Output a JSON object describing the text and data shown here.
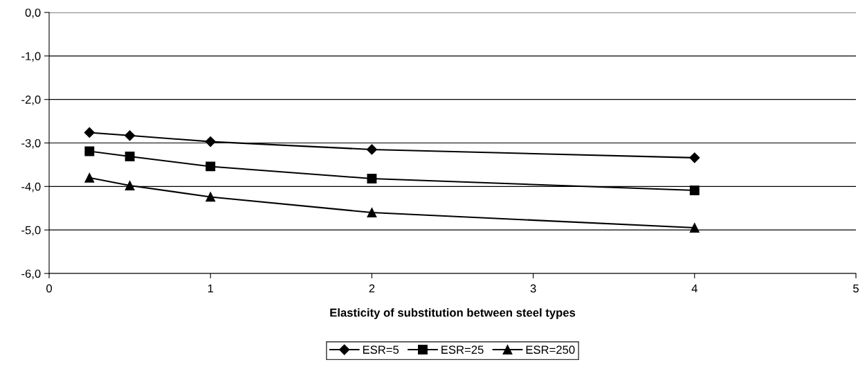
{
  "chart_data": {
    "type": "line",
    "xlabel": "Elasticity of substitution between steel types",
    "xlim": [
      0,
      5
    ],
    "xticks": [
      0,
      1,
      2,
      3,
      4,
      5
    ],
    "ylim": [
      -6,
      0
    ],
    "yticks": [
      {
        "value": -6,
        "label": "-6,0"
      },
      {
        "value": -5,
        "label": "-5,0"
      },
      {
        "value": -4,
        "label": "-4,0"
      },
      {
        "value": -3,
        "label": "-3,0"
      },
      {
        "value": -2,
        "label": "-2,0"
      },
      {
        "value": -1,
        "label": "-1,0"
      },
      {
        "value": 0,
        "label": "0,0"
      }
    ],
    "grid": "y",
    "legend": "bottom",
    "line_style": "solid",
    "x": [
      0.25,
      0.5,
      1,
      2,
      4
    ],
    "series": [
      {
        "name": "ESR=5",
        "color": "#000000",
        "marker": "diamond",
        "values": [
          -2.76,
          -2.83,
          -2.97,
          -3.15,
          -3.34
        ]
      },
      {
        "name": "ESR=25",
        "color": "#000000",
        "marker": "square",
        "values": [
          -3.19,
          -3.31,
          -3.54,
          -3.82,
          -4.09
        ]
      },
      {
        "name": "ESR=250",
        "color": "#000000",
        "marker": "triangle",
        "values": [
          -3.8,
          -3.98,
          -4.24,
          -4.6,
          -4.95
        ]
      }
    ]
  }
}
